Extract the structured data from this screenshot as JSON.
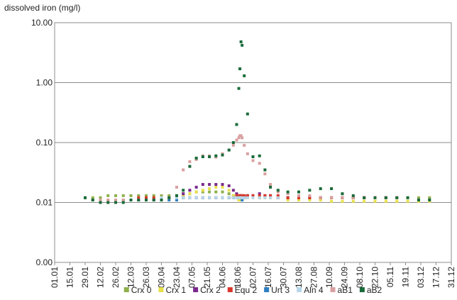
{
  "chart_data": {
    "type": "scatter",
    "title": "dissolved iron (mg/l)",
    "yscale": "log",
    "ylim": [
      0.001,
      10
    ],
    "yticks": [
      {
        "value": 0.001,
        "label": "0.00"
      },
      {
        "value": 0.01,
        "label": "0.01"
      },
      {
        "value": 0.1,
        "label": "0.10"
      },
      {
        "value": 1,
        "label": "1.00"
      },
      {
        "value": 10,
        "label": "10.00"
      }
    ],
    "xlim": [
      0,
      364
    ],
    "xticks": [
      {
        "value": 0,
        "label": "01.01"
      },
      {
        "value": 14,
        "label": "15.01"
      },
      {
        "value": 28,
        "label": "29.01"
      },
      {
        "value": 42,
        "label": "12.02"
      },
      {
        "value": 56,
        "label": "26.02"
      },
      {
        "value": 70,
        "label": "12.03"
      },
      {
        "value": 84,
        "label": "26.03"
      },
      {
        "value": 98,
        "label": "09.04"
      },
      {
        "value": 112,
        "label": "23.04"
      },
      {
        "value": 126,
        "label": "07.05"
      },
      {
        "value": 140,
        "label": "21.05"
      },
      {
        "value": 154,
        "label": "04.06"
      },
      {
        "value": 168,
        "label": "18.06"
      },
      {
        "value": 182,
        "label": "02.07"
      },
      {
        "value": 196,
        "label": "16.07"
      },
      {
        "value": 210,
        "label": "30.07"
      },
      {
        "value": 224,
        "label": "13.08"
      },
      {
        "value": 238,
        "label": "27.08"
      },
      {
        "value": 252,
        "label": "10.09"
      },
      {
        "value": 266,
        "label": "24.09"
      },
      {
        "value": 280,
        "label": "08.10"
      },
      {
        "value": 294,
        "label": "22.10"
      },
      {
        "value": 308,
        "label": "05.11"
      },
      {
        "value": 322,
        "label": "19.11"
      },
      {
        "value": 336,
        "label": "03.12"
      },
      {
        "value": 350,
        "label": "17.12"
      },
      {
        "value": 364,
        "label": "31.12"
      }
    ],
    "grid": true,
    "legend": "bottom",
    "x": [
      28,
      35,
      42,
      49,
      56,
      63,
      70,
      77,
      84,
      91,
      98,
      105,
      112,
      118,
      124,
      130,
      136,
      142,
      148,
      154,
      160,
      164,
      167,
      169,
      170,
      171,
      172,
      174,
      177,
      182,
      188,
      193,
      198,
      205,
      214,
      224,
      234,
      244,
      254,
      264,
      274,
      284,
      294,
      304,
      314,
      324,
      334,
      344
    ],
    "series": [
      {
        "name": "Crx 0",
        "color": "#8fb04c",
        "values": [
          0.012,
          0.012,
          0.012,
          0.013,
          0.013,
          0.013,
          0.013,
          0.013,
          0.013,
          0.013,
          0.013,
          0.013,
          0.013,
          0.014,
          0.014,
          0.015,
          0.015,
          0.015,
          0.015,
          0.015,
          0.014,
          0.013,
          0.013,
          0.013,
          0.013,
          0.013,
          0.013,
          0.013,
          0.013,
          0.013,
          0.012,
          0.012,
          0.012,
          0.012,
          0.012,
          0.012,
          0.012,
          0.012,
          0.012,
          0.012,
          0.012,
          0.012,
          0.012,
          0.012,
          0.012,
          0.012,
          0.012,
          0.012
        ]
      },
      {
        "name": "Crx 1",
        "color": "#e8e04c",
        "values": [
          null,
          0.011,
          0.011,
          0.011,
          0.011,
          0.011,
          0.011,
          0.011,
          0.011,
          0.011,
          0.011,
          0.011,
          0.012,
          0.013,
          0.014,
          0.015,
          0.016,
          0.017,
          0.018,
          0.018,
          0.016,
          0.013,
          0.012,
          0.011,
          0.011,
          0.011,
          0.011,
          0.012,
          0.012,
          0.012,
          0.012,
          0.012,
          0.012,
          0.012,
          0.011,
          0.011,
          0.011,
          0.011,
          0.0105,
          0.0105,
          0.0105,
          0.0105,
          0.0105,
          0.0105,
          0.0105,
          0.0105,
          0.0105,
          0.0105
        ]
      },
      {
        "name": "Crx 2",
        "color": "#7b2a8c",
        "values": [
          null,
          null,
          null,
          null,
          null,
          null,
          null,
          0.011,
          0.011,
          0.011,
          0.011,
          0.012,
          0.012,
          0.014,
          0.016,
          0.018,
          0.02,
          0.02,
          0.02,
          0.02,
          0.019,
          0.016,
          0.014,
          0.013,
          0.012,
          0.012,
          0.012,
          0.012,
          0.013,
          0.013,
          0.014,
          0.013,
          0.013,
          0.012,
          0.012,
          0.012,
          0.012,
          0.012,
          0.012,
          0.012,
          0.012,
          0.012,
          0.012,
          0.012,
          null,
          null,
          null,
          null
        ]
      },
      {
        "name": "Equ 2",
        "color": "#d9362b",
        "values": [
          null,
          null,
          null,
          null,
          null,
          null,
          null,
          0.012,
          0.012,
          0.012,
          0.012,
          0.012,
          0.012,
          0.012,
          0.012,
          0.012,
          0.012,
          0.012,
          0.012,
          0.012,
          0.012,
          0.012,
          0.013,
          0.013,
          0.013,
          0.013,
          0.013,
          0.013,
          0.013,
          0.013,
          0.013,
          0.013,
          0.013,
          0.013,
          0.012,
          0.012,
          0.012,
          0.012,
          0.012,
          0.012,
          0.012,
          0.012,
          0.012,
          0.012,
          0.012,
          null,
          null,
          null
        ]
      },
      {
        "name": "Urt 3",
        "color": "#2f7fc1",
        "values": [
          null,
          null,
          null,
          null,
          null,
          0.011,
          0.011,
          0.011,
          0.011,
          0.011,
          0.011,
          0.011,
          0.011,
          0.012,
          0.012,
          0.012,
          0.012,
          0.012,
          0.012,
          0.012,
          0.012,
          0.012,
          0.012,
          0.012,
          0.012,
          0.012,
          0.011,
          null,
          null,
          null,
          null,
          null,
          null,
          null,
          null,
          null,
          null,
          null,
          null,
          null,
          null,
          null,
          null,
          null,
          null,
          null,
          null,
          null
        ]
      },
      {
        "name": "Aln 4",
        "color": "#b7d7ea",
        "values": [
          null,
          null,
          null,
          null,
          null,
          null,
          null,
          null,
          null,
          null,
          0.012,
          0.012,
          0.012,
          0.012,
          0.012,
          0.012,
          0.012,
          0.012,
          0.012,
          0.012,
          0.012,
          0.012,
          0.012,
          0.012,
          0.012,
          0.012,
          0.012,
          0.012,
          0.012,
          0.012,
          0.012,
          0.012,
          0.012,
          0.012,
          null,
          null,
          null,
          null,
          null,
          null,
          null,
          null,
          null,
          null,
          null,
          null,
          null,
          null
        ]
      },
      {
        "name": "aB1",
        "color": "#d9a0a0",
        "values": [
          null,
          0.011,
          0.011,
          0.011,
          0.011,
          0.011,
          0.011,
          0.011,
          0.011,
          0.011,
          0.011,
          0.012,
          0.018,
          0.035,
          0.048,
          0.052,
          0.06,
          0.06,
          0.057,
          0.065,
          0.075,
          0.09,
          0.11,
          0.12,
          0.13,
          0.13,
          0.12,
          0.09,
          0.065,
          0.05,
          0.045,
          0.03,
          0.02,
          0.015,
          0.014,
          0.013,
          0.013,
          0.012,
          0.012,
          0.012,
          0.012,
          0.012,
          0.012,
          0.012,
          0.012,
          null,
          null,
          null
        ]
      },
      {
        "name": "aB2",
        "color": "#1a6b3a",
        "values": [
          0.012,
          0.011,
          0.01,
          0.01,
          0.01,
          0.01,
          0.011,
          0.011,
          0.011,
          0.011,
          0.011,
          0.012,
          0.013,
          0.016,
          0.04,
          0.055,
          0.058,
          0.058,
          0.06,
          0.062,
          0.075,
          0.1,
          0.2,
          0.8,
          1.7,
          4.8,
          4.2,
          1.3,
          0.3,
          0.058,
          0.06,
          0.035,
          0.018,
          0.016,
          0.015,
          0.015,
          0.016,
          0.017,
          0.017,
          0.014,
          0.013,
          0.012,
          0.012,
          0.012,
          0.012,
          0.012,
          0.011,
          0.011
        ]
      }
    ]
  }
}
